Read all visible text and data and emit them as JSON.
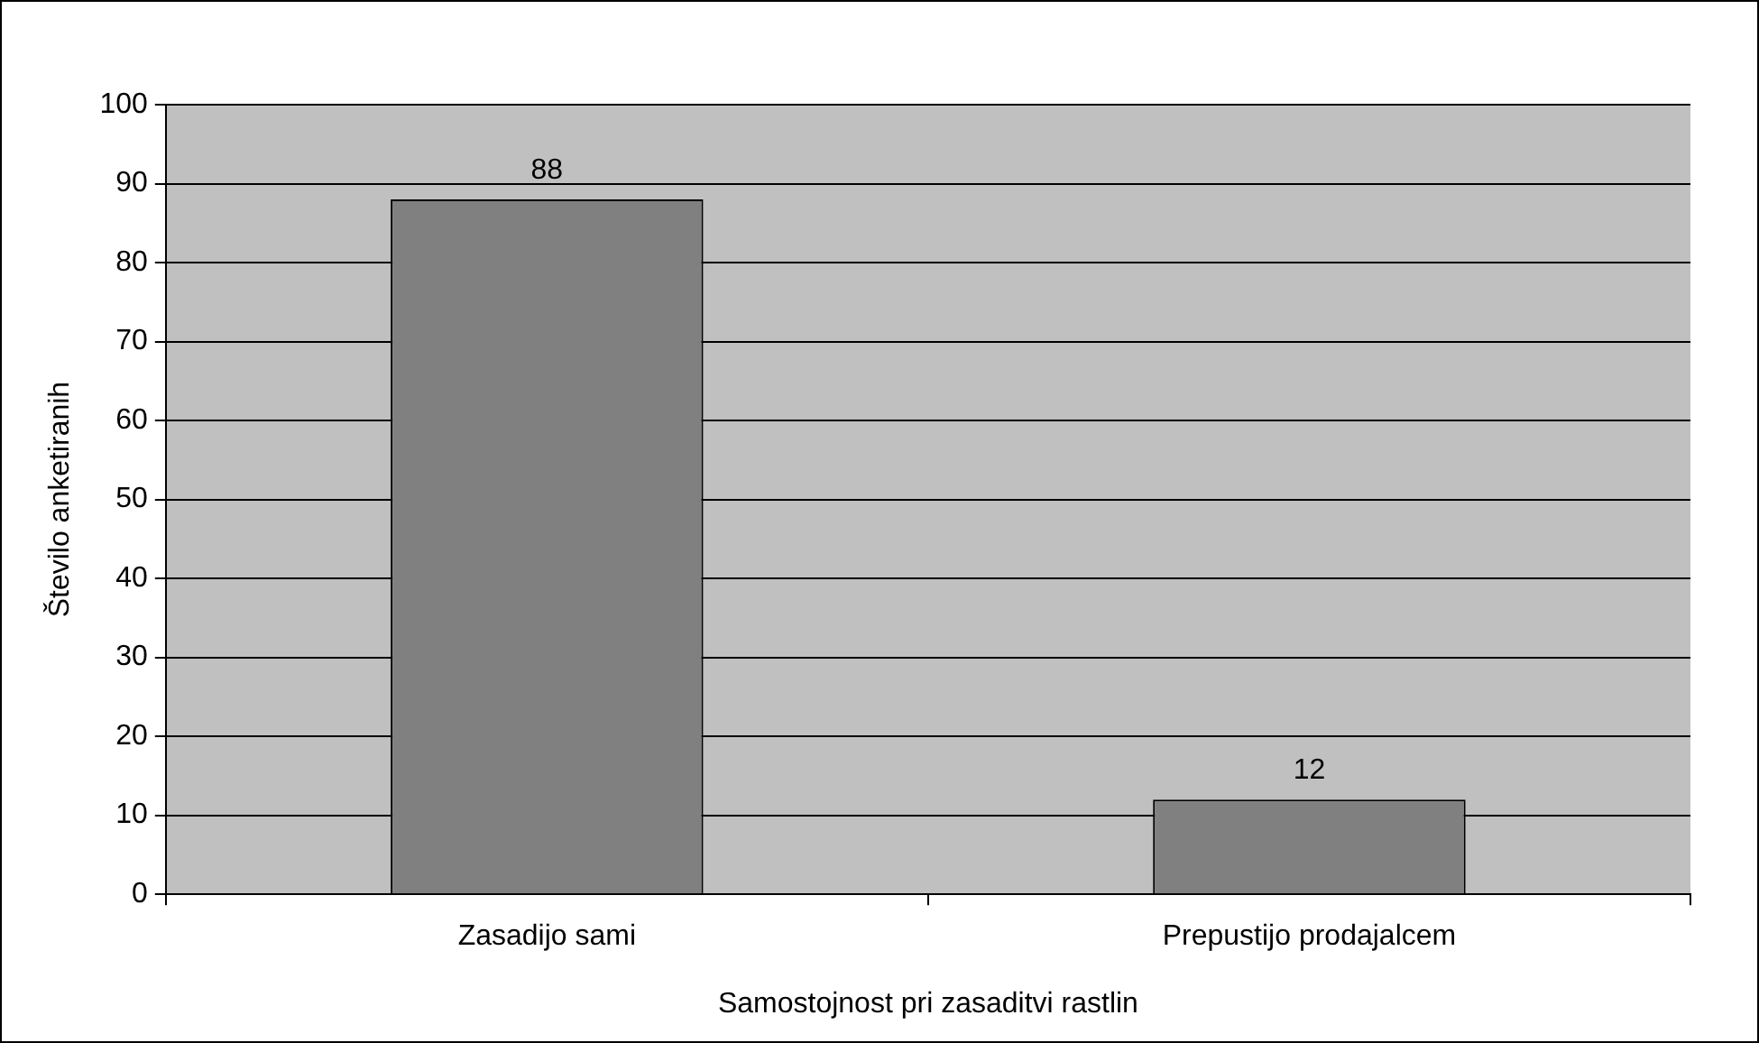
{
  "chart_data": {
    "type": "bar",
    "xlabel": "Samostojnost pri zasaditvi rastlin",
    "ylabel": "Število anketiranih",
    "categories": [
      "Zasadijo sami",
      "Prepustijo prodajalcem"
    ],
    "values": [
      88,
      12
    ],
    "color": "#808080",
    "ylim": [
      0,
      100
    ],
    "yticks": [
      0,
      10,
      20,
      30,
      40,
      50,
      60,
      70,
      80,
      90,
      100
    ],
    "grid": "y",
    "data_labels": true,
    "legend": false
  }
}
